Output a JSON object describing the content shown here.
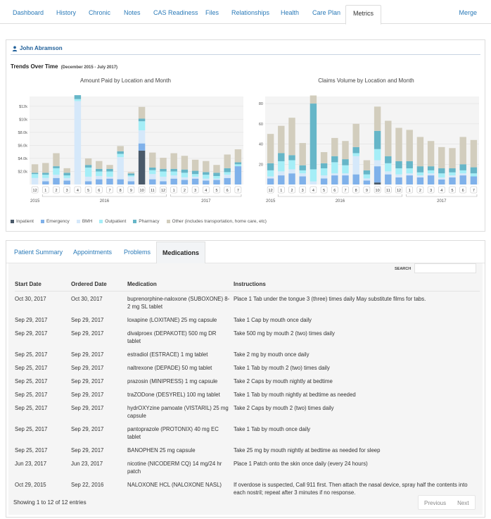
{
  "nav": {
    "tabs": [
      "Dashboard",
      "History",
      "Chronic",
      "Notes",
      "CAS Readiness",
      "Files",
      "Relationships",
      "Health",
      "Care Plan",
      "Metrics"
    ],
    "active_tab": "Metrics",
    "merge_label": "Merge"
  },
  "patient": {
    "name": "John Abramson"
  },
  "trends": {
    "title": "Trends Over Time",
    "range": "(December 2015 - July 2017)"
  },
  "legend": [
    {
      "name": "Inpatient",
      "color": "#4a5a6a"
    },
    {
      "name": "Emergency",
      "color": "#7fb1ea"
    },
    {
      "name": "BMH",
      "color": "#d5e8fa"
    },
    {
      "name": "Outpatient",
      "color": "#a5eef7"
    },
    {
      "name": "Pharmacy",
      "color": "#66b6c8"
    },
    {
      "name": "Other (includes transportation, home care, etc)",
      "color": "#d2cdbd"
    }
  ],
  "chart_data": [
    {
      "type": "bar",
      "stacked": true,
      "title": "Amount Paid by Location and Month",
      "categories": [
        "12",
        "1",
        "2",
        "3",
        "4",
        "5",
        "6",
        "7",
        "8",
        "9",
        "10",
        "11",
        "12",
        "1",
        "2",
        "3",
        "4",
        "5",
        "6",
        "7"
      ],
      "year_groups": [
        {
          "label": "2015",
          "from": 0,
          "to": 0
        },
        {
          "label": "2016",
          "from": 1,
          "to": 12
        },
        {
          "label": "2017",
          "from": 13,
          "to": 19
        }
      ],
      "y_ticks": [
        {
          "value": 2000,
          "label": "$2.0k"
        },
        {
          "value": 4000,
          "label": "$4.0k"
        },
        {
          "value": 6000,
          "label": "$6.0k"
        },
        {
          "value": 8000,
          "label": "$8.0k"
        },
        {
          "value": 10000,
          "label": "$10k"
        },
        {
          "value": 12000,
          "label": "$12k"
        }
      ],
      "ylim": [
        0,
        13500
      ],
      "grid": true,
      "series": [
        {
          "name": "Inpatient",
          "values": [
            0,
            0,
            0,
            0,
            0,
            0,
            0,
            0,
            0,
            0,
            5200,
            0,
            0,
            0,
            0,
            0,
            0,
            0,
            0,
            0
          ]
        },
        {
          "name": "Emergency",
          "values": [
            0,
            500,
            1000,
            600,
            0,
            500,
            800,
            900,
            800,
            500,
            1100,
            800,
            500,
            900,
            700,
            900,
            600,
            700,
            1000,
            2800
          ]
        },
        {
          "name": "BMH",
          "values": [
            1000,
            500,
            500,
            400,
            12800,
            700,
            500,
            300,
            3400,
            700,
            2000,
            800,
            700,
            500,
            400,
            300,
            300,
            200,
            500,
            0
          ]
        },
        {
          "name": "Outpatient",
          "values": [
            600,
            500,
            1000,
            400,
            300,
            1400,
            700,
            800,
            500,
            200,
            1400,
            600,
            800,
            600,
            700,
            400,
            600,
            400,
            400,
            300
          ]
        },
        {
          "name": "Pharmacy",
          "values": [
            200,
            300,
            300,
            400,
            600,
            400,
            400,
            400,
            400,
            300,
            400,
            400,
            400,
            400,
            500,
            500,
            400,
            500,
            600,
            300
          ]
        },
        {
          "name": "Other (includes transportation, home care, etc)",
          "values": [
            1300,
            1500,
            2000,
            700,
            0,
            1000,
            1200,
            600,
            800,
            200,
            1800,
            2300,
            1700,
            2400,
            2100,
            1700,
            1700,
            1200,
            2100,
            2000
          ]
        }
      ]
    },
    {
      "type": "bar",
      "stacked": true,
      "title": "Claims Volume by Location and Month",
      "categories": [
        "12",
        "1",
        "2",
        "3",
        "4",
        "5",
        "6",
        "7",
        "8",
        "9",
        "10",
        "11",
        "12",
        "1",
        "2",
        "3",
        "4",
        "5",
        "6",
        "7"
      ],
      "year_groups": [
        {
          "label": "2015",
          "from": 0,
          "to": 0
        },
        {
          "label": "2016",
          "from": 1,
          "to": 12
        },
        {
          "label": "2017",
          "from": 13,
          "to": 19
        }
      ],
      "y_ticks": [
        {
          "value": 20,
          "label": "20"
        },
        {
          "value": 40,
          "label": "40"
        },
        {
          "value": 60,
          "label": "60"
        },
        {
          "value": 80,
          "label": "80"
        }
      ],
      "ylim": [
        0,
        87
      ],
      "grid": true,
      "series": [
        {
          "name": "Inpatient",
          "values": [
            0,
            0,
            0,
            0,
            0,
            0,
            0,
            0,
            0,
            0,
            2,
            0,
            0,
            0,
            0,
            0,
            0,
            0,
            0,
            0
          ]
        },
        {
          "name": "Emergency",
          "values": [
            6,
            9,
            11,
            8,
            0,
            6,
            9,
            9,
            10,
            4,
            16,
            10,
            7,
            9,
            7,
            9,
            5,
            7,
            9,
            8
          ]
        },
        {
          "name": "BMH",
          "values": [
            2,
            4,
            4,
            3,
            3,
            3,
            2,
            2,
            18,
            2,
            6,
            3,
            3,
            2,
            2,
            2,
            2,
            2,
            2,
            0
          ]
        },
        {
          "name": "Outpatient",
          "values": [
            6,
            10,
            9,
            3,
            12,
            7,
            11,
            8,
            3,
            4,
            11,
            8,
            6,
            5,
            3,
            3,
            4,
            3,
            3,
            3
          ]
        },
        {
          "name": "Pharmacy",
          "values": [
            7,
            8,
            5,
            5,
            65,
            5,
            6,
            6,
            6,
            4,
            18,
            7,
            7,
            7,
            6,
            4,
            5,
            4,
            6,
            6
          ]
        },
        {
          "name": "Other (includes transportation, home care, etc)",
          "values": [
            29,
            27,
            37,
            22,
            8,
            11,
            18,
            18,
            23,
            10,
            24,
            35,
            33,
            31,
            29,
            25,
            21,
            20,
            27,
            27
          ]
        }
      ]
    }
  ],
  "subtabs": [
    "Patient Summary",
    "Appointments",
    "Problems",
    "Medications"
  ],
  "active_subtab": "Medications",
  "search": {
    "label": "SEARCH",
    "value": ""
  },
  "medications": {
    "columns": [
      "Start Date",
      "Ordered Date",
      "Medication",
      "Instructions"
    ],
    "rows": [
      {
        "start": "Oct 30, 2017",
        "ordered": "Oct 30, 2017",
        "medication": "buprenorphine-naloxone (SUBOXONE) 8-2 mg SL tablet",
        "instructions": "Place 1 Tab under the tongue 3 (three) times daily May substitute films for tabs."
      },
      {
        "start": "Sep 29, 2017",
        "ordered": "Sep 29, 2017",
        "medication": "loxapine (LOXITANE) 25 mg capsule",
        "instructions": "Take 1 Cap by mouth once daily"
      },
      {
        "start": "Sep 29, 2017",
        "ordered": "Sep 29, 2017",
        "medication": "divalproex (DEPAKOTE) 500 mg DR tablet",
        "instructions": "Take 500 mg by mouth 2 (two) times daily"
      },
      {
        "start": "Sep 25, 2017",
        "ordered": "Sep 29, 2017",
        "medication": "estradiol (ESTRACE) 1 mg tablet",
        "instructions": "Take 2 mg by mouth once daily"
      },
      {
        "start": "Sep 25, 2017",
        "ordered": "Sep 29, 2017",
        "medication": "naltrexone (DEPADE) 50 mg tablet",
        "instructions": "Take 1 Tab by mouth 2 (two) times daily"
      },
      {
        "start": "Sep 25, 2017",
        "ordered": "Sep 29, 2017",
        "medication": "prazosin (MINIPRESS) 1 mg capsule",
        "instructions": "Take 2 Caps by mouth nightly at bedtime"
      },
      {
        "start": "Sep 25, 2017",
        "ordered": "Sep 29, 2017",
        "medication": "traZODone (DESYREL) 100 mg tablet",
        "instructions": "Take 1 Tab by mouth nightly at bedtime as needed"
      },
      {
        "start": "Sep 25, 2017",
        "ordered": "Sep 29, 2017",
        "medication": "hydrOXYzine pamoate (VISTARIL) 25 mg capsule",
        "instructions": "Take 2 Caps by mouth 2 (two) times daily"
      },
      {
        "start": "Sep 25, 2017",
        "ordered": "Sep 29, 2017",
        "medication": "pantoprazole (PROTONIX) 40 mg EC tablet",
        "instructions": "Take 1 Tab by mouth once daily"
      },
      {
        "start": "Sep 25, 2017",
        "ordered": "Sep 29, 2017",
        "medication": "BANOPHEN 25 mg capsule",
        "instructions": "Take 25 mg by mouth nightly at bedtime as needed for sleep"
      },
      {
        "start": "Jun 23, 2017",
        "ordered": "Jun 23, 2017",
        "medication": "nicotine (NICODERM CQ) 14 mg/24 hr patch",
        "instructions": "Place 1 Patch onto the skin once daily (every 24 hours)"
      },
      {
        "start": "Oct 29, 2015",
        "ordered": "Sep 22, 2016",
        "medication": "NALOXONE HCL (NALOXONE NASL)",
        "instructions": "If overdose is suspected, Call 911 first. Then attach the nasal device, spray half the contents into each nostril; repeat after 3 minutes if no response."
      }
    ]
  },
  "footer": {
    "showing": "Showing 1 to 12 of 12 entries",
    "previous": "Previous",
    "next": "Next"
  }
}
